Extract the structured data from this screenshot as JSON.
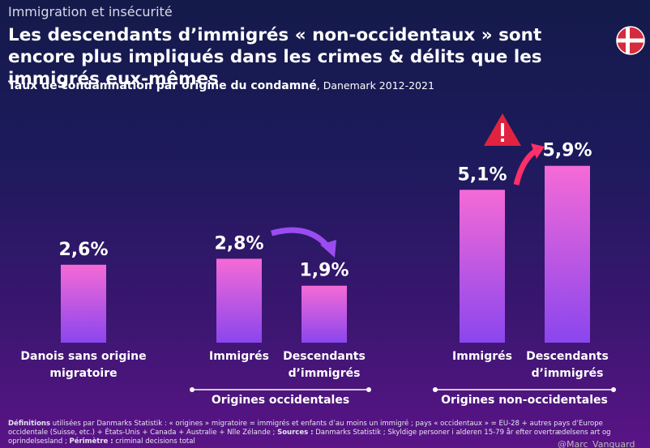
{
  "kicker": "Immigration et insécurité",
  "chart_data": {
    "type": "bar",
    "title": "Les descendants d’immigrés « non-occidentaux » sont encore plus impliqués dans les crimes & délits que les immigrés eux-mêmes",
    "subtitle": "Taux de condamnation par origine du condamné",
    "subtitle_note": ", Danemark 2012-2021",
    "categories": [
      "Danois sans origine migratoire",
      "Immigrés",
      "Descendants d’immigrés",
      "Immigrés",
      "Descendants d’immigrés"
    ],
    "values": [
      2.6,
      2.8,
      1.9,
      5.1,
      5.9
    ],
    "value_labels": [
      "2,6%",
      "2,8%",
      "1,9%",
      "5,1%",
      "5,9%"
    ],
    "groups": [
      "Origines occidentales",
      "Origines non-occidentales"
    ],
    "color": [
      "#f56ad6",
      "#8a46ee"
    ]
  },
  "footnote": [
    {
      "text": "Définitions",
      "bold": true
    },
    {
      "text": " utilisées par Danmarks Statistik : « origines » migratoire = immigrés et enfants d’au moins un immigré ; pays « occidentaux » = EU-28 + autres pays d’Europe occidentale (Suisse, etc.) + États-Unis + Canada + Australie + Nlle Zélande ; ",
      "bold": false
    },
    {
      "text": "Sources :",
      "bold": true
    },
    {
      "text": " Danmarks Statistik ; Skyldige personer i alderen 15-79 år efter overtrædelsens art og oprindelsesland ; ",
      "bold": false
    },
    {
      "text": "Périmètre :",
      "bold": true
    },
    {
      "text": " criminal decisions total",
      "bold": false
    }
  ],
  "watermark": "@Marc_Vanguard"
}
